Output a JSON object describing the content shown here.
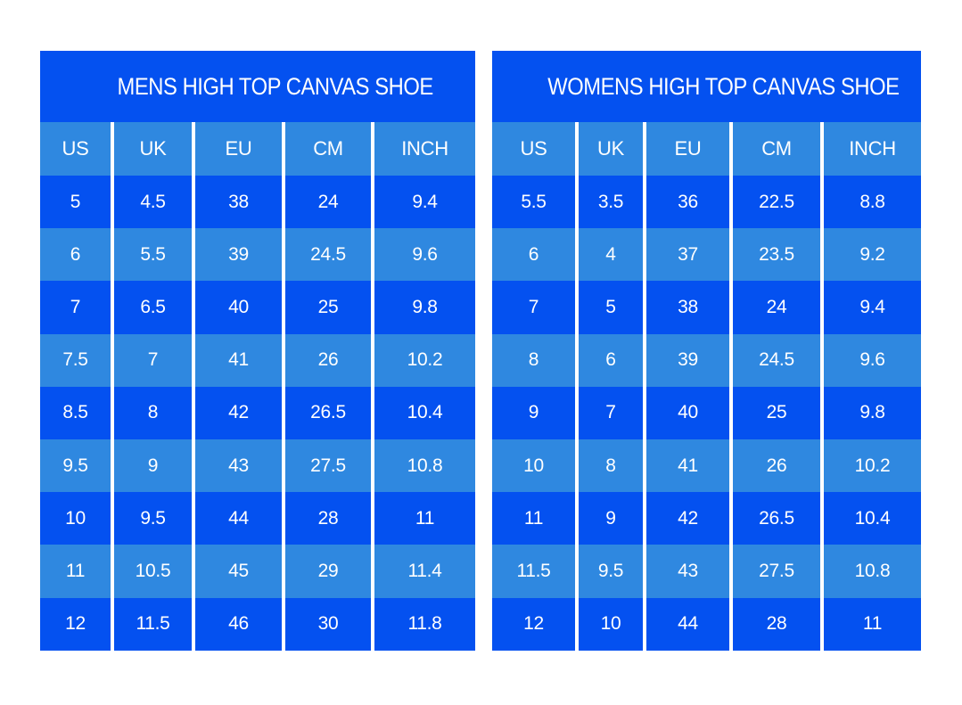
{
  "colors": {
    "row_dark": "#0451F0",
    "row_light": "#2F88E0",
    "text": "#FFFFFF",
    "page_background": "#FFFFFF"
  },
  "chart_data": [
    {
      "type": "table",
      "title": "MENS HIGH TOP CANVAS SHOE",
      "columns": [
        "US",
        "UK",
        "EU",
        "CM",
        "INCH"
      ],
      "rows": [
        [
          "5",
          "4.5",
          "38",
          "24",
          "9.4"
        ],
        [
          "6",
          "5.5",
          "39",
          "24.5",
          "9.6"
        ],
        [
          "7",
          "6.5",
          "40",
          "25",
          "9.8"
        ],
        [
          "7.5",
          "7",
          "41",
          "26",
          "10.2"
        ],
        [
          "8.5",
          "8",
          "42",
          "26.5",
          "10.4"
        ],
        [
          "9.5",
          "9",
          "43",
          "27.5",
          "10.8"
        ],
        [
          "10",
          "9.5",
          "44",
          "28",
          "11"
        ],
        [
          "11",
          "10.5",
          "45",
          "29",
          "11.4"
        ],
        [
          "12",
          "11.5",
          "46",
          "30",
          "11.8"
        ]
      ],
      "layout": {
        "first_data_row_shade": "dark",
        "alternating_shades": true,
        "header_shade": "light"
      }
    },
    {
      "type": "table",
      "title": "WOMENS HIGH TOP CANVAS SHOE",
      "columns": [
        "US",
        "UK",
        "EU",
        "CM",
        "INCH"
      ],
      "rows": [
        [
          "5.5",
          "3.5",
          "36",
          "22.5",
          "8.8"
        ],
        [
          "6",
          "4",
          "37",
          "23.5",
          "9.2"
        ],
        [
          "7",
          "5",
          "38",
          "24",
          "9.4"
        ],
        [
          "8",
          "6",
          "39",
          "24.5",
          "9.6"
        ],
        [
          "9",
          "7",
          "40",
          "25",
          "9.8"
        ],
        [
          "10",
          "8",
          "41",
          "26",
          "10.2"
        ],
        [
          "11",
          "9",
          "42",
          "26.5",
          "10.4"
        ],
        [
          "11.5",
          "9.5",
          "43",
          "27.5",
          "10.8"
        ],
        [
          "12",
          "10",
          "44",
          "28",
          "11"
        ]
      ],
      "layout": {
        "first_data_row_shade": "dark",
        "alternating_shades": true,
        "header_shade": "light"
      }
    }
  ]
}
